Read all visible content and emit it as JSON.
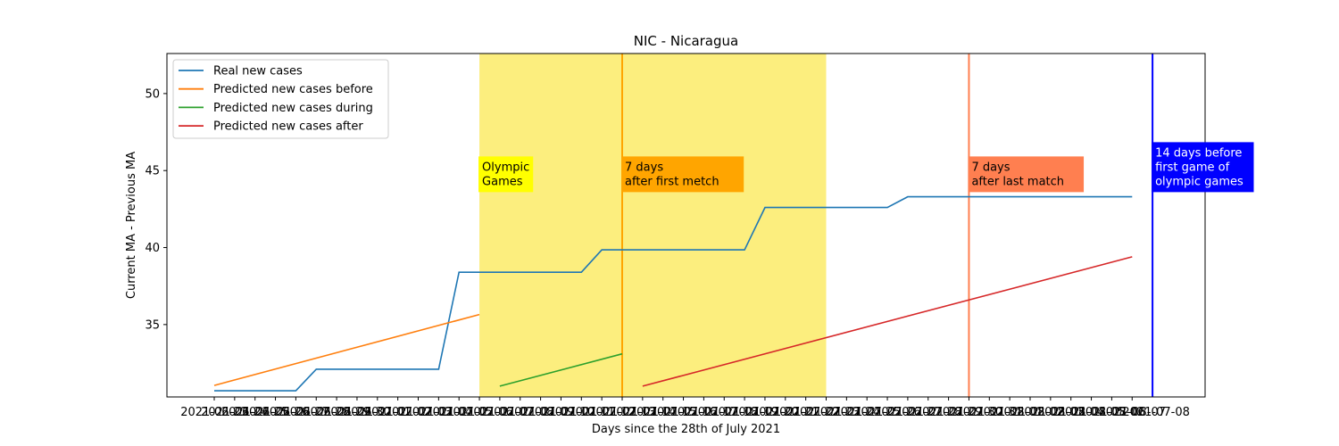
{
  "chart_data": {
    "type": "line",
    "title": "NIC - Nicaragua",
    "xlabel": "Days since the 28th of July 2021",
    "ylabel": "Current MA - Previous MA",
    "ylim": [
      30.3,
      52.6
    ],
    "y_ticks": [
      35,
      40,
      45,
      50
    ],
    "x_ticks": {
      "start_date": "2021-06-23",
      "count": 46,
      "first_label": "2021-06-23",
      "last_label": "2021-08-07",
      "end_label_overlay": "2021-07-08",
      "note": "tick labels are overlapping date strings (YYYY-MM-DD), one per day"
    },
    "series": [
      {
        "name": "Real new cases",
        "color": "#1f77b4",
        "x": [
          0,
          4,
          5,
          11,
          12,
          18,
          19,
          26,
          27,
          33,
          34,
          45
        ],
        "y": [
          30.7,
          30.7,
          32.1,
          32.1,
          38.4,
          38.4,
          39.85,
          39.85,
          42.6,
          42.6,
          43.3,
          43.3
        ]
      },
      {
        "name": "Predicted new cases before",
        "color": "#ff7f0e",
        "x": [
          0,
          13
        ],
        "y": [
          31.05,
          35.65
        ]
      },
      {
        "name": "Predicted new cases during",
        "color": "#2ca02c",
        "x": [
          14,
          20
        ],
        "y": [
          31.0,
          33.1
        ]
      },
      {
        "name": "Predicted new cases after",
        "color": "#d62728",
        "x": [
          21,
          45
        ],
        "y": [
          31.0,
          39.4
        ]
      }
    ],
    "shaded_region": {
      "x_start": 13,
      "x_end": 30,
      "color": "#fcee7e"
    },
    "vertical_lines": [
      {
        "x": 20,
        "color": "#ffa500"
      },
      {
        "x": 37,
        "color": "#ff7f50"
      },
      {
        "x": 46,
        "color": "#0000ff"
      }
    ],
    "annotations": [
      {
        "lines": [
          "Olympic",
          "Games"
        ],
        "bg": "#ffff00",
        "fg": "#000000",
        "x": 13,
        "y": 43.6
      },
      {
        "lines": [
          "7 days",
          "after first metch"
        ],
        "bg": "#ffa500",
        "fg": "#000000",
        "x": 20,
        "y": 43.6
      },
      {
        "lines": [
          "7 days",
          "after last match"
        ],
        "bg": "#ff7f50",
        "fg": "#000000",
        "x": 37,
        "y": 43.6
      },
      {
        "lines": [
          "14 days before",
          "first game of",
          "olympic games"
        ],
        "bg": "#0000ff",
        "fg": "#ffffff",
        "x": 46,
        "y": 43.6
      }
    ],
    "legend": {
      "position": "top-left"
    }
  }
}
